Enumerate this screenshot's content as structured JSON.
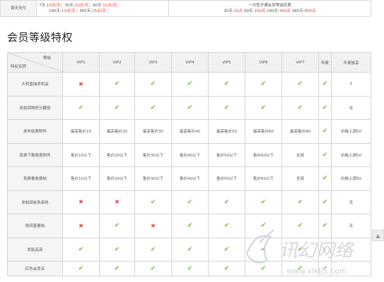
{
  "top_row": {
    "label": "按天支付",
    "pay_line1": [
      "7天:",
      "10点/天",
      "；30天:",
      "10点/天",
      "；90天:",
      "11点/天",
      "；"
    ],
    "pay_line2": [
      "180天:",
      "13点/天",
      "；365天:",
      "15点/天",
      "；"
    ],
    "upgrade_line1": "一次性开通会员等级优惠",
    "upgrade_line2": [
      "30天:",
      "20点",
      "90天:",
      "100点",
      "180天:",
      "300点",
      "365天:",
      "800点"
    ]
  },
  "section_title": "会员等级特权",
  "table": {
    "corner_top": "等级",
    "corner_bottom": "特权名称",
    "levels": [
      "VIP1",
      "VIP2",
      "VIP3",
      "VIP4",
      "VIP5",
      "VIP6",
      "VIP7",
      "年费",
      "年费独享"
    ],
    "rows": [
      {
        "name": "大转盘抽奖机会",
        "cells": [
          "x",
          "v",
          "v",
          "v",
          "v",
          "v",
          "v",
          "v",
          "1"
        ]
      },
      {
        "name": "发帖回购积分翻倍",
        "cells": [
          "v",
          "v",
          "v",
          "v",
          "v",
          "v",
          "v",
          "v",
          "无"
        ]
      },
      {
        "name": "发布收费附件",
        "cells": [
          "最高售价10",
          "最高售价20",
          "最高售价30",
          "最高售价40",
          "最高售价50",
          "最高售价60",
          "最高售价90",
          "v",
          "价格上调50"
        ]
      },
      {
        "name": "免费下载收费附件",
        "cells": [
          "售价10以下",
          "售价20以下",
          "售价30以下",
          "售价40以下",
          "售价50以下",
          "售价60以下",
          "全部",
          "v",
          "价格上调50"
        ]
      },
      {
        "name": "免费看收费帖",
        "cells": [
          "售价10以下",
          "售价20以下",
          "售价30以下",
          "售价40以下",
          "售价50以下",
          "售价60以下",
          "全部",
          "v",
          "价格上调50"
        ]
      },
      {
        "name": "发帖回帖免审核",
        "cells": [
          "x",
          "x",
          "v",
          "v",
          "v",
          "v",
          "v",
          "v",
          "无"
        ]
      },
      {
        "name": "免回复看帖",
        "cells": [
          "x",
          "v",
          "x",
          "v",
          "v",
          "v",
          "v",
          "v",
          "无"
        ]
      },
      {
        "name": "发贴高亮",
        "cells": [
          "v",
          "v",
          "v",
          "v",
          "v",
          "v",
          "v",
          "v",
          ""
        ]
      },
      {
        "name": "红色会员名",
        "cells": [
          "v",
          "v",
          "v",
          "v",
          "v",
          "v",
          "v",
          "v",
          ""
        ]
      }
    ]
  },
  "icons": {
    "check": "check-icon",
    "cross": "cross-icon"
  },
  "colors": {
    "check": "#72b83b",
    "cross": "#e05656",
    "price_red": "#e23c2e"
  },
  "side_button": "scroll-top-icon",
  "watermark": {
    "line1": "讯幻网络",
    "line2": "www.xiklj5.com"
  }
}
